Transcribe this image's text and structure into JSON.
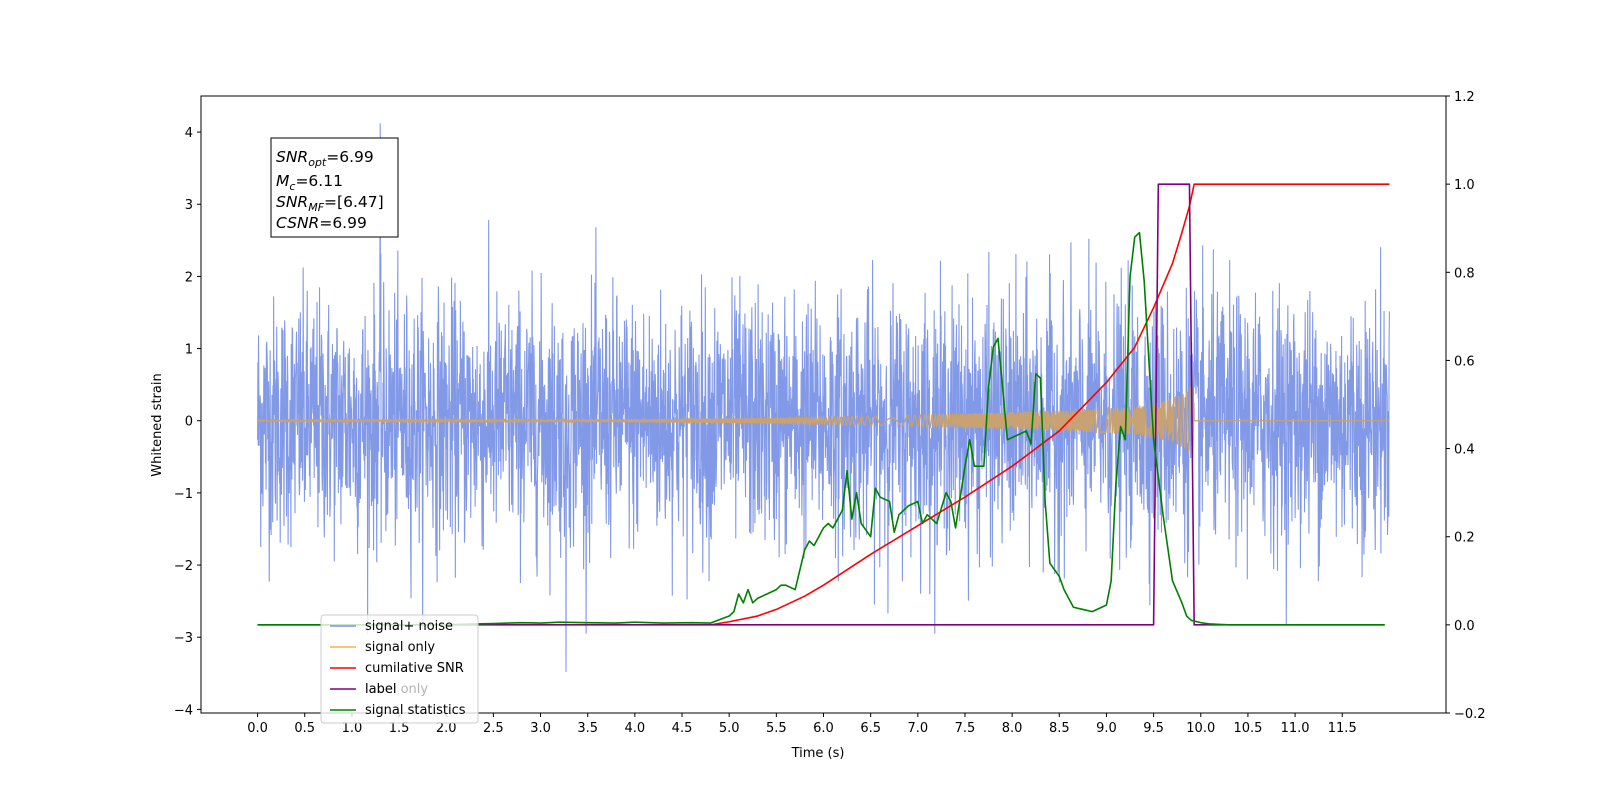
{
  "chart_data": {
    "type": "line",
    "xlabel": "Time (s)",
    "ylabel": "Whitened strain",
    "xlim": [
      -0.6,
      12.6
    ],
    "ylim": [
      -4.05,
      4.5
    ],
    "ylim_right": [
      -0.2,
      1.2
    ],
    "x_ticks": [
      "0.0",
      "0.5",
      "1.0",
      "1.5",
      "2.0",
      "2.5",
      "3.0",
      "3.5",
      "4.0",
      "4.5",
      "5.0",
      "5.5",
      "6.0",
      "6.5",
      "7.0",
      "7.5",
      "8.0",
      "8.5",
      "9.0",
      "9.5",
      "10.0",
      "10.5",
      "11.0",
      "11.5"
    ],
    "y_ticks_left": [
      "−4",
      "−3",
      "−2",
      "−1",
      "0",
      "1",
      "2",
      "3",
      "4"
    ],
    "y_ticks_right": [
      "−0.2",
      "0.0",
      "0.2",
      "0.4",
      "0.6",
      "0.8",
      "1.0",
      "1.2"
    ],
    "annotation": {
      "snr_opt": {
        "sym": "SNR",
        "sub": "opt",
        "val": "=6.99"
      },
      "mc": {
        "sym": "M",
        "sub": "c",
        "val": "=6.11"
      },
      "snr_mf": {
        "sym": "SNR",
        "sub": "MF",
        "val": "=[6.47]"
      },
      "csnr": {
        "sym": "CSNR",
        "val": "=6.99"
      }
    },
    "legend": {
      "position": "lower-left",
      "entries": [
        {
          "label": "signal+ noise",
          "color": "#7b93e6"
        },
        {
          "label": "signal only",
          "color": "#f5b44c"
        },
        {
          "label": "cumilative SNR",
          "color": "#ff0000"
        },
        {
          "label": "label",
          "color": "#800080"
        },
        {
          "label": "signal statistics",
          "color": "#008000"
        }
      ],
      "hidden_label": "label only"
    },
    "series": [
      {
        "name": "signal+ noise",
        "axis": "left",
        "color": "#7b93e6",
        "x_range": [
          0.0,
          12.0
        ],
        "std": 0.85,
        "max": 4.12,
        "min": -3.48
      },
      {
        "name": "signal only",
        "axis": "left",
        "color": "#c8a272",
        "x_range": [
          0.0,
          12.0
        ],
        "merger_time": 9.93,
        "envelope": {
          "x": [
            0,
            3,
            5,
            6,
            7,
            7.5,
            8,
            8.5,
            9,
            9.3,
            9.5,
            9.7,
            9.85,
            9.93
          ],
          "y": [
            0.005,
            0.01,
            0.03,
            0.05,
            0.08,
            0.1,
            0.12,
            0.14,
            0.17,
            0.2,
            0.24,
            0.3,
            0.4,
            0.55
          ]
        }
      },
      {
        "name": "cumilative SNR",
        "axis": "right",
        "color": "#ff0000",
        "x": [
          4.8,
          5.0,
          5.3,
          5.5,
          5.8,
          6.0,
          6.5,
          7.0,
          7.5,
          8.0,
          8.5,
          9.0,
          9.3,
          9.5,
          9.7,
          9.8,
          9.88,
          9.93,
          12.0
        ],
        "y": [
          0.0,
          0.007,
          0.02,
          0.035,
          0.065,
          0.09,
          0.16,
          0.225,
          0.29,
          0.36,
          0.44,
          0.55,
          0.63,
          0.72,
          0.82,
          0.89,
          0.95,
          1.0,
          1.0
        ]
      },
      {
        "name": "label",
        "axis": "right",
        "color": "#800080",
        "x": [
          0.0,
          9.5,
          9.55,
          9.88,
          9.93,
          11.95
        ],
        "y": [
          0.0,
          0.0,
          1.0,
          1.0,
          0.0,
          0.0
        ]
      },
      {
        "name": "signal statistics",
        "axis": "right",
        "color": "#008000",
        "x": [
          0.0,
          2.0,
          2.3,
          2.5,
          2.8,
          3.0,
          3.2,
          3.5,
          3.8,
          4.0,
          4.3,
          4.6,
          4.8,
          5.0,
          5.05,
          5.1,
          5.15,
          5.2,
          5.25,
          5.3,
          5.4,
          5.5,
          5.55,
          5.6,
          5.7,
          5.8,
          5.85,
          5.9,
          6.0,
          6.05,
          6.1,
          6.2,
          6.25,
          6.3,
          6.35,
          6.4,
          6.5,
          6.55,
          6.6,
          6.7,
          6.75,
          6.8,
          6.9,
          7.0,
          7.05,
          7.1,
          7.2,
          7.3,
          7.35,
          7.4,
          7.5,
          7.55,
          7.6,
          7.7,
          7.75,
          7.8,
          7.85,
          7.95,
          8.05,
          8.15,
          8.2,
          8.25,
          8.3,
          8.35,
          8.4,
          8.5,
          8.55,
          8.65,
          8.75,
          8.85,
          9.0,
          9.05,
          9.1,
          9.15,
          9.2,
          9.25,
          9.3,
          9.35,
          9.4,
          9.5,
          9.6,
          9.7,
          9.8,
          9.85,
          9.9,
          10.0,
          10.1,
          10.2,
          10.3,
          10.5,
          11.0,
          11.95
        ],
        "y": [
          0.0,
          0.0,
          0.002,
          0.003,
          0.005,
          0.004,
          0.006,
          0.005,
          0.004,
          0.006,
          0.004,
          0.005,
          0.004,
          0.02,
          0.03,
          0.07,
          0.05,
          0.08,
          0.05,
          0.06,
          0.07,
          0.08,
          0.09,
          0.09,
          0.08,
          0.17,
          0.19,
          0.18,
          0.22,
          0.23,
          0.22,
          0.26,
          0.35,
          0.24,
          0.3,
          0.23,
          0.2,
          0.31,
          0.29,
          0.28,
          0.21,
          0.25,
          0.27,
          0.28,
          0.23,
          0.25,
          0.23,
          0.3,
          0.28,
          0.22,
          0.36,
          0.42,
          0.36,
          0.36,
          0.54,
          0.63,
          0.65,
          0.42,
          0.43,
          0.44,
          0.41,
          0.57,
          0.56,
          0.28,
          0.14,
          0.11,
          0.08,
          0.04,
          0.035,
          0.03,
          0.045,
          0.1,
          0.32,
          0.45,
          0.42,
          0.79,
          0.88,
          0.89,
          0.78,
          0.42,
          0.25,
          0.1,
          0.05,
          0.02,
          0.01,
          0.005,
          0.002,
          0.001,
          0,
          0,
          0,
          0
        ]
      }
    ]
  }
}
